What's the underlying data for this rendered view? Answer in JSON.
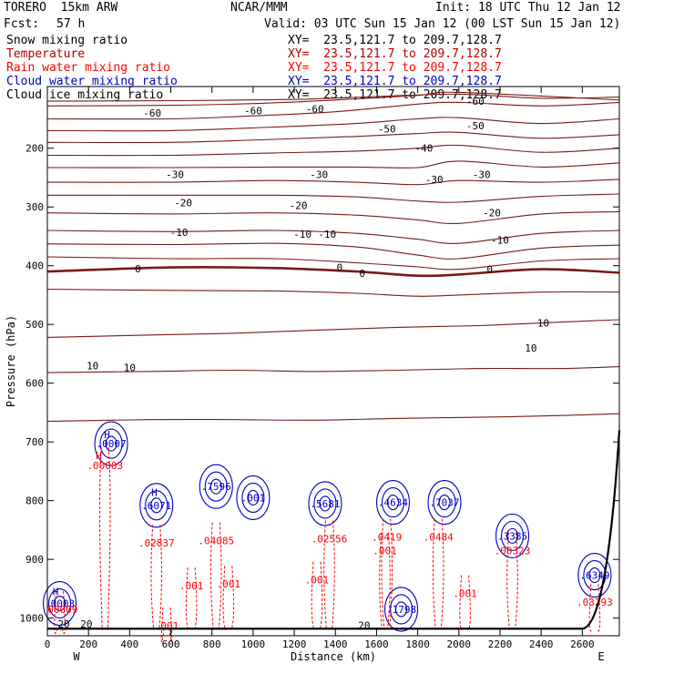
{
  "header": {
    "model": "TORERO  15km ARW",
    "center": "NCAR/MMM",
    "init": "Init: 18 UTC Thu 12 Jan 12",
    "fcst_label": "Fcst:",
    "fcst_value": "57 h",
    "valid": "Valid: 03 UTC Sun 15 Jan 12 (00 LST Sun 15 Jan 12)"
  },
  "legend": [
    {
      "name": "Snow mixing ratio",
      "xy": "XY=  23.5,121.7 to 209.7,128.7",
      "color": "#000000"
    },
    {
      "name": "Temperature",
      "xy": "XY=  23.5,121.7 to 209.7,128.7",
      "color": "#b00000"
    },
    {
      "name": "Rain water mixing ratio",
      "xy": "XY=  23.5,121.7 to 209.7,128.7",
      "color": "#ff0000"
    },
    {
      "name": "Cloud water mixing ratio",
      "xy": "XY=  23.5,121.7 to 209.7,128.7",
      "color": "#0000c0"
    },
    {
      "name": "Cloud ice mixing ratio",
      "xy": "XY=  23.5,121.7 to 209.7,128.7",
      "color": "#000000"
    }
  ],
  "chart_data": {
    "type": "cross-section contour",
    "xlabel": "Distance (km)",
    "ylabel": "Pressure (hPa)",
    "xlim": [
      0,
      2780
    ],
    "ylim": [
      1030,
      95
    ],
    "x_ticks": [
      0,
      200,
      400,
      600,
      800,
      1000,
      1200,
      1400,
      1600,
      1800,
      2000,
      2200,
      2400,
      2600
    ],
    "y_ticks": [
      200,
      300,
      400,
      500,
      600,
      700,
      800,
      900,
      1000
    ],
    "x_end_labels": {
      "left": "W",
      "right": "E"
    },
    "temperature_contours": [
      {
        "value": -65,
        "pts": [
          [
            0,
            120
          ],
          [
            600,
            119
          ],
          [
            1200,
            117
          ],
          [
            1600,
            112
          ],
          [
            2000,
            108
          ],
          [
            2400,
            115
          ],
          [
            2780,
            113
          ]
        ]
      },
      {
        "value": -60,
        "pts": [
          [
            0,
            128
          ],
          [
            600,
            127
          ],
          [
            1000,
            124
          ],
          [
            1400,
            118
          ],
          [
            1800,
            110
          ],
          [
            2000,
            105
          ],
          [
            2780,
            118
          ]
        ]
      },
      {
        "value": -55,
        "pts": [
          [
            0,
            150
          ],
          [
            600,
            150
          ],
          [
            1000,
            145
          ],
          [
            1400,
            138
          ],
          [
            1800,
            125
          ],
          [
            2000,
            122
          ],
          [
            2400,
            128
          ],
          [
            2780,
            122
          ]
        ]
      },
      {
        "value": -50,
        "pts": [
          [
            0,
            170
          ],
          [
            600,
            170
          ],
          [
            1100,
            164
          ],
          [
            1500,
            158
          ],
          [
            1800,
            150
          ],
          [
            2000,
            148
          ],
          [
            2400,
            158
          ],
          [
            2780,
            150
          ]
        ]
      },
      {
        "value": -45,
        "pts": [
          [
            0,
            190
          ],
          [
            600,
            190
          ],
          [
            1100,
            185
          ],
          [
            1500,
            180
          ],
          [
            1800,
            175
          ],
          [
            2000,
            173
          ],
          [
            2400,
            183
          ],
          [
            2780,
            177
          ]
        ]
      },
      {
        "value": -40,
        "pts": [
          [
            0,
            212
          ],
          [
            600,
            212
          ],
          [
            1100,
            208
          ],
          [
            1500,
            205
          ],
          [
            1800,
            200
          ],
          [
            2000,
            195
          ],
          [
            2400,
            207
          ],
          [
            2780,
            200
          ]
        ]
      },
      {
        "value": -35,
        "pts": [
          [
            0,
            233
          ],
          [
            600,
            233
          ],
          [
            1100,
            232
          ],
          [
            1500,
            232
          ],
          [
            1800,
            233
          ],
          [
            2000,
            222
          ],
          [
            2400,
            232
          ],
          [
            2780,
            225
          ]
        ]
      },
      {
        "value": -30,
        "pts": [
          [
            0,
            258
          ],
          [
            600,
            258
          ],
          [
            1100,
            255
          ],
          [
            1500,
            258
          ],
          [
            1800,
            262
          ],
          [
            2000,
            255
          ],
          [
            2400,
            258
          ],
          [
            2780,
            253
          ]
        ]
      },
      {
        "value": -25,
        "pts": [
          [
            0,
            280
          ],
          [
            600,
            280
          ],
          [
            1100,
            280
          ],
          [
            1500,
            283
          ],
          [
            1800,
            290
          ],
          [
            2000,
            292
          ],
          [
            2400,
            282
          ],
          [
            2780,
            278
          ]
        ]
      },
      {
        "value": -20,
        "pts": [
          [
            0,
            310
          ],
          [
            600,
            312
          ],
          [
            1100,
            310
          ],
          [
            1500,
            314
          ],
          [
            1800,
            322
          ],
          [
            2000,
            328
          ],
          [
            2400,
            312
          ],
          [
            2780,
            308
          ]
        ]
      },
      {
        "value": -15,
        "pts": [
          [
            0,
            340
          ],
          [
            600,
            342
          ],
          [
            1100,
            340
          ],
          [
            1500,
            345
          ],
          [
            1800,
            355
          ],
          [
            2000,
            362
          ],
          [
            2400,
            345
          ],
          [
            2780,
            340
          ]
        ]
      },
      {
        "value": -10,
        "pts": [
          [
            0,
            363
          ],
          [
            600,
            364
          ],
          [
            1100,
            362
          ],
          [
            1500,
            368
          ],
          [
            1800,
            382
          ],
          [
            2000,
            388
          ],
          [
            2400,
            370
          ],
          [
            2780,
            365
          ]
        ]
      },
      {
        "value": -5,
        "pts": [
          [
            0,
            385
          ],
          [
            600,
            388
          ],
          [
            1100,
            388
          ],
          [
            1500,
            395
          ],
          [
            1800,
            402
          ],
          [
            2000,
            406
          ],
          [
            2400,
            392
          ],
          [
            2780,
            388
          ]
        ]
      },
      {
        "value": 0,
        "pts": [
          [
            0,
            410
          ],
          [
            600,
            403
          ],
          [
            1100,
            404
          ],
          [
            1500,
            410
          ],
          [
            1800,
            417
          ],
          [
            2000,
            415
          ],
          [
            2400,
            406
          ],
          [
            2780,
            412
          ]
        ]
      },
      {
        "value": 5,
        "pts": [
          [
            0,
            440
          ],
          [
            600,
            442
          ],
          [
            1100,
            443
          ],
          [
            1500,
            447
          ],
          [
            1800,
            452
          ],
          [
            2000,
            450
          ],
          [
            2400,
            445
          ],
          [
            2780,
            445
          ]
        ]
      },
      {
        "value": 10,
        "pts": [
          [
            0,
            522
          ],
          [
            500,
            518
          ],
          [
            900,
            515
          ],
          [
            1300,
            510
          ],
          [
            1700,
            505
          ],
          [
            2100,
            502
          ],
          [
            2500,
            496
          ],
          [
            2780,
            492
          ]
        ]
      },
      {
        "value": 15,
        "pts": [
          [
            0,
            582
          ],
          [
            500,
            580
          ],
          [
            900,
            578
          ],
          [
            1300,
            580
          ],
          [
            1700,
            578
          ],
          [
            2100,
            575
          ],
          [
            2500,
            575
          ],
          [
            2780,
            572
          ]
        ]
      },
      {
        "value": 20,
        "pts": [
          [
            0,
            665
          ],
          [
            500,
            662
          ],
          [
            900,
            662
          ],
          [
            1300,
            663
          ],
          [
            1700,
            660
          ],
          [
            2100,
            658
          ],
          [
            2500,
            655
          ],
          [
            2780,
            652
          ]
        ]
      }
    ],
    "temperature_labels": [
      {
        "text": "-60",
        "x": 510,
        "y": 140
      },
      {
        "text": "-60",
        "x": 1000,
        "y": 136
      },
      {
        "text": "-60",
        "x": 1300,
        "y": 133
      },
      {
        "text": "-60",
        "x": 2080,
        "y": 120
      },
      {
        "text": "-50",
        "x": 1650,
        "y": 167
      },
      {
        "text": "-50",
        "x": 2080,
        "y": 162
      },
      {
        "text": "-40",
        "x": 1830,
        "y": 200
      },
      {
        "text": "-30",
        "x": 620,
        "y": 245
      },
      {
        "text": "-30",
        "x": 1320,
        "y": 245
      },
      {
        "text": "-30",
        "x": 1880,
        "y": 253
      },
      {
        "text": "-30",
        "x": 2110,
        "y": 245
      },
      {
        "text": "-20",
        "x": 660,
        "y": 293
      },
      {
        "text": "-20",
        "x": 1220,
        "y": 297
      },
      {
        "text": "-20",
        "x": 2160,
        "y": 310
      },
      {
        "text": "-10",
        "x": 640,
        "y": 343
      },
      {
        "text": "-10",
        "x": 1240,
        "y": 346
      },
      {
        "text": "-10",
        "x": 1360,
        "y": 346
      },
      {
        "text": "-10",
        "x": 2200,
        "y": 356
      },
      {
        "text": "0",
        "x": 440,
        "y": 405
      },
      {
        "text": "0",
        "x": 1420,
        "y": 403
      },
      {
        "text": "0",
        "x": 1530,
        "y": 413
      },
      {
        "text": "0",
        "x": 2150,
        "y": 406
      },
      {
        "text": "10",
        "x": 220,
        "y": 570
      },
      {
        "text": "10",
        "x": 400,
        "y": 573
      },
      {
        "text": "10",
        "x": 2410,
        "y": 497
      },
      {
        "text": "10",
        "x": 2350,
        "y": 540
      },
      {
        "text": "20",
        "x": 80,
        "y": 1010
      },
      {
        "text": "20",
        "x": 190,
        "y": 1010
      },
      {
        "text": "20",
        "x": 1540,
        "y": 1012
      }
    ],
    "cloud_water_labels": [
      {
        "text": "H",
        "x": 290,
        "y": 687,
        "c": "#0000c0"
      },
      {
        "text": ".0007",
        "x": 310,
        "y": 703,
        "c": "#0000c0"
      },
      {
        "text": "H",
        "x": 520,
        "y": 786,
        "c": "#0000c0"
      },
      {
        "text": ".6071",
        "x": 530,
        "y": 808,
        "c": "#0000c0"
      },
      {
        "text": ".7596",
        "x": 820,
        "y": 776,
        "c": "#0000c0"
      },
      {
        "text": ".001",
        "x": 1000,
        "y": 795,
        "c": "#0000c0"
      },
      {
        "text": ".5681",
        "x": 1350,
        "y": 805,
        "c": "#0000c0"
      },
      {
        "text": ".4634",
        "x": 1680,
        "y": 803,
        "c": "#0000c0"
      },
      {
        "text": ".7037",
        "x": 1930,
        "y": 803,
        "c": "#0000c0"
      },
      {
        "text": ".3385",
        "x": 2260,
        "y": 860,
        "c": "#0000c0"
      },
      {
        "text": ".6349",
        "x": 2660,
        "y": 927,
        "c": "#0000c0"
      },
      {
        "text": ".1798",
        "x": 1720,
        "y": 985,
        "c": "#0000c0"
      },
      {
        "text": "H",
        "x": 40,
        "y": 955,
        "c": "#0000c0"
      },
      {
        "text": ".0003",
        "x": 60,
        "y": 975,
        "c": "#0000c0"
      }
    ],
    "rain_labels": [
      {
        "text": "H",
        "x": 250,
        "y": 723,
        "c": "#ff0000"
      },
      {
        "text": ".00003",
        "x": 280,
        "y": 740,
        "c": "#ff0000"
      },
      {
        "text": ".02837",
        "x": 530,
        "y": 872,
        "c": "#ff0000"
      },
      {
        "text": ".04085",
        "x": 820,
        "y": 868,
        "c": "#ff0000"
      },
      {
        "text": ".001",
        "x": 700,
        "y": 945,
        "c": "#ff0000"
      },
      {
        "text": ".001",
        "x": 880,
        "y": 942,
        "c": "#ff0000"
      },
      {
        "text": ".02556",
        "x": 1370,
        "y": 865,
        "c": "#ff0000"
      },
      {
        "text": ".001",
        "x": 1310,
        "y": 935,
        "c": "#ff0000"
      },
      {
        "text": ".0419",
        "x": 1650,
        "y": 862,
        "c": "#ff0000"
      },
      {
        "text": ".001",
        "x": 1640,
        "y": 885,
        "c": "#ff0000"
      },
      {
        "text": ".0484",
        "x": 1900,
        "y": 862,
        "c": "#ff0000"
      },
      {
        "text": ".001",
        "x": 2030,
        "y": 958,
        "c": "#ff0000"
      },
      {
        "text": ".00323",
        "x": 2260,
        "y": 885,
        "c": "#ff0000"
      },
      {
        "text": ".03293",
        "x": 2660,
        "y": 973,
        "c": "#ff0000"
      },
      {
        "text": ".00009",
        "x": 60,
        "y": 985,
        "c": "#ff0000"
      },
      {
        "text": ".001",
        "x": 580,
        "y": 1013,
        "c": "#ff0000"
      }
    ]
  }
}
